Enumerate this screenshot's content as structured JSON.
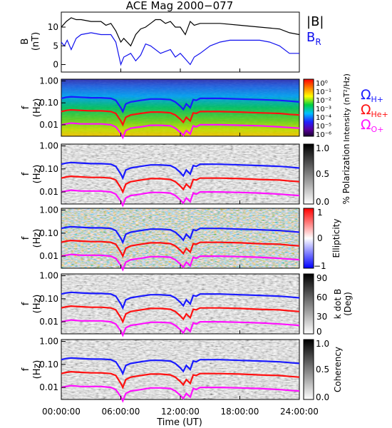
{
  "title": "ACE Mag 2000−077",
  "colors": {
    "B_total": "#000000",
    "B_R": "#1010ee",
    "omega_H": "#1a1aff",
    "omega_He": "#ff1010",
    "omega_O": "#ff10ff",
    "frame": "#000000"
  },
  "legend_top": {
    "B_total": "|B|",
    "B_R": "B",
    "B_R_sub": "R"
  },
  "legend_right": {
    "omega": "Ω",
    "H_sub": "H+",
    "He_sub": "He+",
    "O_sub": "O+"
  },
  "x_axis": {
    "label": "Time (UT)",
    "ticks": [
      "00:00:00",
      "06:00:00",
      "12:00:00",
      "18:00:00",
      "24:00:00"
    ],
    "tick_values_hours": [
      0,
      6,
      12,
      18,
      24
    ]
  },
  "chart_data": [
    {
      "type": "line",
      "panel": "B",
      "ylabel": "B",
      "ylabel_unit": "(nT)",
      "ylim": [
        -2,
        14
      ],
      "yticks": [
        0,
        5,
        10
      ],
      "x_units": "hours UT",
      "series": [
        {
          "name": "|B|",
          "x": [
            0,
            0.5,
            1,
            1.5,
            2,
            3,
            4,
            4.5,
            5,
            5.5,
            6,
            6.3,
            7,
            7.5,
            8,
            8.5,
            9,
            9.5,
            10,
            10.5,
            11,
            11.5,
            12,
            12.5,
            13,
            13.4,
            14,
            16,
            18,
            20,
            22,
            23,
            24
          ],
          "y": [
            10,
            11.5,
            12.5,
            12,
            12,
            11.5,
            11.5,
            10.5,
            11,
            9,
            6,
            7,
            5,
            8,
            9.5,
            10,
            11,
            12,
            12,
            11,
            11.5,
            10,
            10,
            8,
            11.5,
            10.5,
            11,
            11,
            10.5,
            10,
            9.5,
            8.5,
            8
          ]
        },
        {
          "name": "B",
          "x": [
            0,
            0.3,
            0.6,
            1,
            1.5,
            2,
            3,
            4,
            5,
            5.5,
            6,
            6.3,
            7,
            7.5,
            8,
            8.5,
            9,
            10,
            11,
            11.5,
            12,
            12.5,
            13,
            13.4,
            14,
            15,
            16,
            17,
            18,
            19,
            20,
            21,
            22,
            23,
            24
          ],
          "y": [
            6,
            5,
            6.5,
            4,
            7,
            8,
            8.5,
            8,
            8,
            6,
            0,
            2,
            3,
            1,
            2.5,
            5.5,
            5,
            3,
            4,
            2,
            3,
            1.5,
            0,
            2,
            3,
            5,
            6,
            6.5,
            6.5,
            6.5,
            6.5,
            6,
            5,
            3,
            3
          ]
        }
      ]
    },
    {
      "type": "heatmap",
      "panel": "intensity",
      "ylabel": "f",
      "ylabel_unit": "(Hz)",
      "yscale": "log",
      "ylim": [
        0.003,
        1.2
      ],
      "yticks": [
        "1.00",
        "0.10",
        "0.01"
      ],
      "colorbar": {
        "label": "Intensity (nT²/Hz)",
        "ticks": [
          "10⁰",
          "10⁻¹",
          "10⁻²",
          "10⁻³",
          "10⁻⁴",
          "10⁻⁵",
          "10⁻⁶"
        ],
        "colormap": "rainbow"
      }
    },
    {
      "type": "heatmap",
      "panel": "polarization",
      "ylabel": "f",
      "ylabel_unit": "(Hz)",
      "yscale": "log",
      "colorbar": {
        "label": "% Polarization",
        "ticks": [
          "1.0",
          "0.5",
          "0.0"
        ],
        "colormap": "gray"
      }
    },
    {
      "type": "heatmap",
      "panel": "ellipticity",
      "ylabel": "f",
      "ylabel_unit": "(Hz)",
      "yscale": "log",
      "colorbar": {
        "label": "Ellipticity",
        "ticks": [
          "1",
          "0",
          "−1"
        ],
        "colormap": "blue-white-red"
      }
    },
    {
      "type": "heatmap",
      "panel": "k_dot_B",
      "ylabel": "f",
      "ylabel_unit": "(Hz)",
      "yscale": "log",
      "colorbar": {
        "label": "k dot B",
        "label2": "(Deg)",
        "ticks": [
          "90",
          "60",
          "30",
          "0"
        ],
        "colormap": "gray"
      }
    },
    {
      "type": "heatmap",
      "panel": "coherency",
      "ylabel": "f",
      "ylabel_unit": "(Hz)",
      "yscale": "log",
      "colorbar": {
        "label": "Coherency",
        "ticks": [
          "1.0",
          "0.5",
          "0.0"
        ],
        "colormap": "gray"
      }
    }
  ],
  "gyrofrequency_lines": {
    "x": [
      0,
      0.5,
      1,
      2,
      3,
      4,
      5,
      5.5,
      6,
      6.2,
      6.5,
      7,
      8,
      9,
      10,
      11,
      11.5,
      12,
      12.3,
      12.6,
      13,
      13.3,
      13.6,
      14,
      16,
      18,
      20,
      22,
      23,
      24
    ],
    "H_plus_Hz": [
      0.16,
      0.18,
      0.19,
      0.18,
      0.17,
      0.17,
      0.16,
      0.13,
      0.06,
      0.04,
      0.09,
      0.11,
      0.13,
      0.15,
      0.15,
      0.14,
      0.11,
      0.07,
      0.05,
      0.09,
      0.06,
      0.14,
      0.13,
      0.16,
      0.16,
      0.15,
      0.14,
      0.13,
      0.12,
      0.11
    ],
    "He_plus_Hz": [
      0.04,
      0.045,
      0.048,
      0.045,
      0.043,
      0.043,
      0.04,
      0.033,
      0.015,
      0.01,
      0.022,
      0.028,
      0.033,
      0.038,
      0.038,
      0.035,
      0.028,
      0.018,
      0.013,
      0.022,
      0.015,
      0.035,
      0.033,
      0.04,
      0.04,
      0.038,
      0.035,
      0.033,
      0.03,
      0.028
    ],
    "O_plus_Hz": [
      0.01,
      0.011,
      0.012,
      0.011,
      0.011,
      0.011,
      0.01,
      0.008,
      0.004,
      0.0026,
      0.0055,
      0.007,
      0.008,
      0.0095,
      0.0095,
      0.009,
      0.007,
      0.0045,
      0.0033,
      0.0055,
      0.0038,
      0.009,
      0.008,
      0.01,
      0.01,
      0.0095,
      0.009,
      0.008,
      0.0075,
      0.007
    ]
  }
}
